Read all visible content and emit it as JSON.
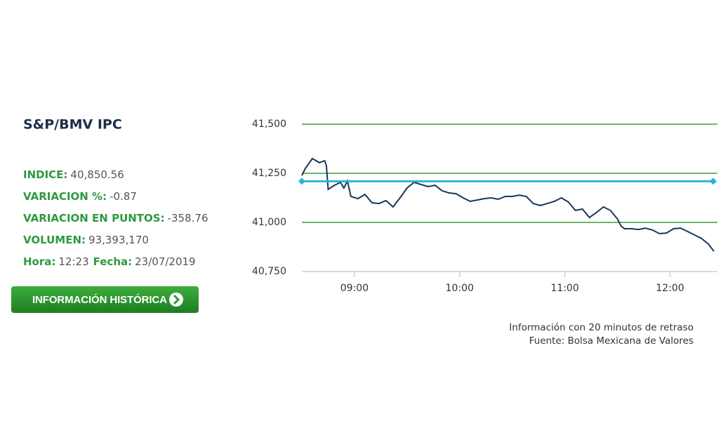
{
  "header": {
    "title": "S&P/BMV IPC"
  },
  "fields": [
    [
      {
        "label": "INDICE:",
        "value": "40,850.56"
      }
    ],
    [
      {
        "label": "VARIACION %:",
        "value": "-0.87"
      }
    ],
    [
      {
        "label": "VARIACION EN PUNTOS:",
        "value": "-358.76"
      }
    ],
    [
      {
        "label": "VOLUMEN:",
        "value": "93,393,170"
      }
    ],
    [
      {
        "label": "Hora:",
        "value": "12:23"
      },
      {
        "label": "Fecha:",
        "value": "23/07/2019"
      }
    ]
  ],
  "button": {
    "label": "INFORMACIÓN HISTÓRICA"
  },
  "notes": [
    "Información con 20 minutos de retraso",
    "Fuente: Bolsa Mexicana de Valores"
  ],
  "chart_data": {
    "type": "line",
    "color": "#14385e",
    "grid_color": "#3f9a3f",
    "x": [
      510,
      512,
      516,
      520,
      523,
      524,
      525,
      528,
      532,
      534,
      536,
      538,
      542,
      546,
      550,
      554,
      558,
      562,
      566,
      570,
      574,
      578,
      582,
      586,
      590,
      594,
      598,
      602,
      606,
      610,
      614,
      618,
      622,
      626,
      630,
      634,
      638,
      642,
      646,
      650,
      654,
      658,
      662,
      666,
      670,
      674,
      678,
      682,
      686,
      690,
      692,
      694,
      698,
      702,
      706,
      710,
      714,
      718,
      722,
      726,
      730,
      734,
      738,
      742,
      745
    ],
    "values": [
      41239,
      41275,
      41325,
      41304,
      41314,
      41289,
      41168,
      41186,
      41204,
      41175,
      41211,
      41132,
      41121,
      41143,
      41100,
      41096,
      41111,
      41079,
      41125,
      41175,
      41204,
      41193,
      41182,
      41189,
      41161,
      41150,
      41146,
      41125,
      41107,
      41114,
      41121,
      41125,
      41118,
      41132,
      41132,
      41139,
      41132,
      41096,
      41086,
      41096,
      41107,
      41125,
      41104,
      41061,
      41068,
      41025,
      41050,
      41079,
      41061,
      41018,
      40982,
      40968,
      40968,
      40964,
      40971,
      40961,
      40943,
      40946,
      40968,
      40971,
      40954,
      40936,
      40918,
      40889,
      40853
    ],
    "xlim": [
      510,
      747
    ],
    "xticks": [
      {
        "value": 540,
        "label": "09:00"
      },
      {
        "value": 600,
        "label": "10:00"
      },
      {
        "value": 660,
        "label": "11:00"
      },
      {
        "value": 720,
        "label": "12:00"
      }
    ],
    "ylim": [
      40750,
      41500
    ],
    "yticks": [
      {
        "value": 40750,
        "label": "40,750"
      },
      {
        "value": 41000,
        "label": "41,000"
      },
      {
        "value": 41250,
        "label": "41,250"
      },
      {
        "value": 41500,
        "label": "41,500"
      }
    ],
    "grid": true,
    "reference_line": {
      "value": 41209.32,
      "color": "#2cb5d5"
    }
  }
}
